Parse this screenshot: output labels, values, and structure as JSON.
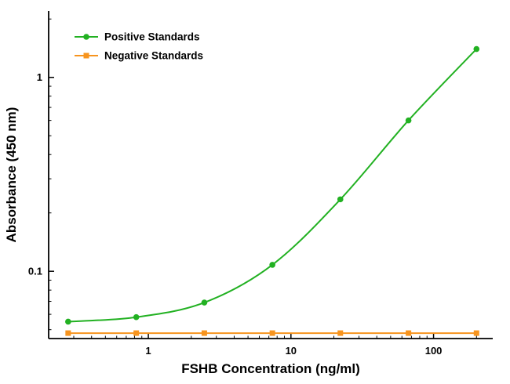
{
  "chart_data": {
    "type": "line",
    "title": "",
    "xlabel": "FSHB Concentration (ng/ml)",
    "ylabel": "Absorbance (450 nm)",
    "x_scale": "log",
    "y_scale": "log",
    "xlim": [
      0.2,
      260
    ],
    "ylim": [
      0.045,
      2.2
    ],
    "x_ticks": [
      1,
      10,
      100
    ],
    "y_ticks": [
      0.1,
      1
    ],
    "grid": false,
    "legend_position": "top-left",
    "background_color": "#ffffff",
    "axis_color": "#000000",
    "text_color": "#000000",
    "series": [
      {
        "name": "Positive Standards",
        "color": "#22b122",
        "marker": "circle",
        "smooth": true,
        "x": [
          0.274,
          0.823,
          2.47,
          7.41,
          22.2,
          66.7,
          200
        ],
        "y": [
          0.055,
          0.058,
          0.069,
          0.108,
          0.235,
          0.6,
          1.4
        ]
      },
      {
        "name": "Negative Standards",
        "color": "#f7941e",
        "marker": "square",
        "smooth": false,
        "x": [
          0.274,
          0.823,
          2.47,
          7.41,
          22.2,
          66.7,
          200
        ],
        "y": [
          0.048,
          0.048,
          0.048,
          0.048,
          0.048,
          0.048,
          0.048
        ]
      }
    ]
  }
}
